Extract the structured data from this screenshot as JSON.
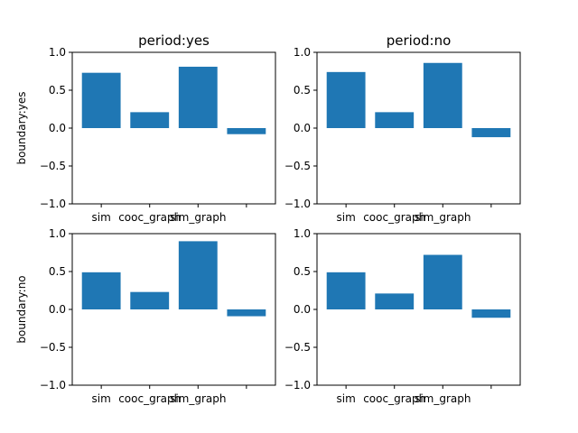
{
  "colors": {
    "bar": "#1f77b4",
    "axis": "#000000",
    "background": "#ffffff"
  },
  "chart_data": [
    {
      "type": "bar",
      "title": "period:yes",
      "ylabel": "boundary:yes",
      "xlabel": "",
      "categories": [
        "sim",
        "cooc_graph",
        "sim_graph",
        ""
      ],
      "values": [
        0.73,
        0.21,
        0.81,
        -0.08
      ],
      "ylim": [
        -1.0,
        1.0
      ],
      "yticks": [
        "1.0",
        "0.5",
        "0.0",
        "−0.5",
        "−1.0"
      ],
      "grid": false
    },
    {
      "type": "bar",
      "title": "period:no",
      "ylabel": "",
      "xlabel": "",
      "categories": [
        "sim",
        "cooc_graph",
        "sim_graph",
        ""
      ],
      "values": [
        0.74,
        0.21,
        0.86,
        -0.12
      ],
      "ylim": [
        -1.0,
        1.0
      ],
      "yticks": [
        "1.0",
        "0.5",
        "0.0",
        "−0.5",
        "−1.0"
      ],
      "grid": false
    },
    {
      "type": "bar",
      "title": "",
      "ylabel": "boundary:no",
      "xlabel": "",
      "categories": [
        "sim",
        "cooc_graph",
        "sim_graph",
        ""
      ],
      "values": [
        0.49,
        0.23,
        0.9,
        -0.09
      ],
      "ylim": [
        -1.0,
        1.0
      ],
      "yticks": [
        "1.0",
        "0.5",
        "0.0",
        "−0.5",
        "−1.0"
      ],
      "grid": false
    },
    {
      "type": "bar",
      "title": "",
      "ylabel": "",
      "xlabel": "",
      "categories": [
        "sim",
        "cooc_graph",
        "sim_graph",
        ""
      ],
      "values": [
        0.49,
        0.21,
        0.72,
        -0.11
      ],
      "ylim": [
        -1.0,
        1.0
      ],
      "yticks": [
        "1.0",
        "0.5",
        "0.0",
        "−0.5",
        "−1.0"
      ],
      "grid": false
    }
  ]
}
